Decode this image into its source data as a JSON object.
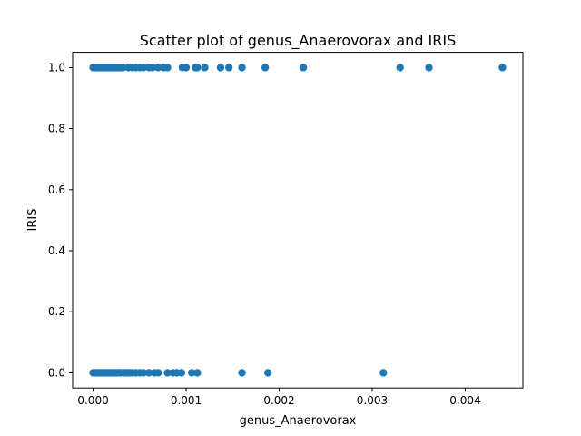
{
  "chart_data": {
    "type": "scatter",
    "title": "Scatter plot of genus_Anaerovorax and IRIS",
    "xlabel": "genus_Anaerovorax",
    "ylabel": "IRIS",
    "xlim": [
      -0.00022,
      0.00462
    ],
    "ylim": [
      -0.05,
      1.05
    ],
    "xticks": [
      0.0,
      0.001,
      0.002,
      0.003,
      0.004
    ],
    "xtick_labels": [
      "0.000",
      "0.001",
      "0.002",
      "0.003",
      "0.004"
    ],
    "yticks": [
      0.0,
      0.2,
      0.4,
      0.6,
      0.8,
      1.0
    ],
    "ytick_labels": [
      "0.0",
      "0.2",
      "0.4",
      "0.6",
      "0.8",
      "1.0"
    ],
    "grid": false,
    "marker_color": "#1f77b4",
    "series": [
      {
        "x": [
          0.0,
          2e-05,
          4e-05,
          6e-05,
          8e-05,
          0.0001,
          0.00012,
          0.00014,
          0.00016,
          0.00018,
          0.0002,
          0.00022,
          0.00024,
          0.00026,
          0.00028,
          0.0003,
          0.00032,
          0.00038,
          0.00042,
          0.00046,
          0.0005,
          0.00054,
          0.0006,
          0.00064,
          0.0007,
          0.00076,
          0.0008,
          0.00096,
          0.001,
          0.0011,
          0.00112,
          0.0012,
          0.00137,
          0.00146,
          0.0016,
          0.00185,
          0.00226,
          0.0033,
          0.00361,
          0.0044
        ],
        "y": [
          1,
          1,
          1,
          1,
          1,
          1,
          1,
          1,
          1,
          1,
          1,
          1,
          1,
          1,
          1,
          1,
          1,
          1,
          1,
          1,
          1,
          1,
          1,
          1,
          1,
          1,
          1,
          1,
          1,
          1,
          1,
          1,
          1,
          1,
          1,
          1,
          1,
          1,
          1,
          1
        ]
      },
      {
        "x": [
          0.0,
          2e-05,
          4e-05,
          6e-05,
          8e-05,
          0.0001,
          0.00012,
          0.00014,
          0.00016,
          0.00018,
          0.0002,
          0.00022,
          0.00024,
          0.00026,
          0.00028,
          0.0003,
          0.00034,
          0.00036,
          0.00038,
          0.0004,
          0.00042,
          0.00046,
          0.0005,
          0.00054,
          0.0006,
          0.00066,
          0.0007,
          0.0008,
          0.00086,
          0.0009,
          0.00095,
          0.00106,
          0.00112,
          0.0016,
          0.00188,
          0.00312
        ],
        "y": [
          0,
          0,
          0,
          0,
          0,
          0,
          0,
          0,
          0,
          0,
          0,
          0,
          0,
          0,
          0,
          0,
          0,
          0,
          0,
          0,
          0,
          0,
          0,
          0,
          0,
          0,
          0,
          0,
          0,
          0,
          0,
          0,
          0,
          0,
          0,
          0
        ]
      }
    ]
  }
}
